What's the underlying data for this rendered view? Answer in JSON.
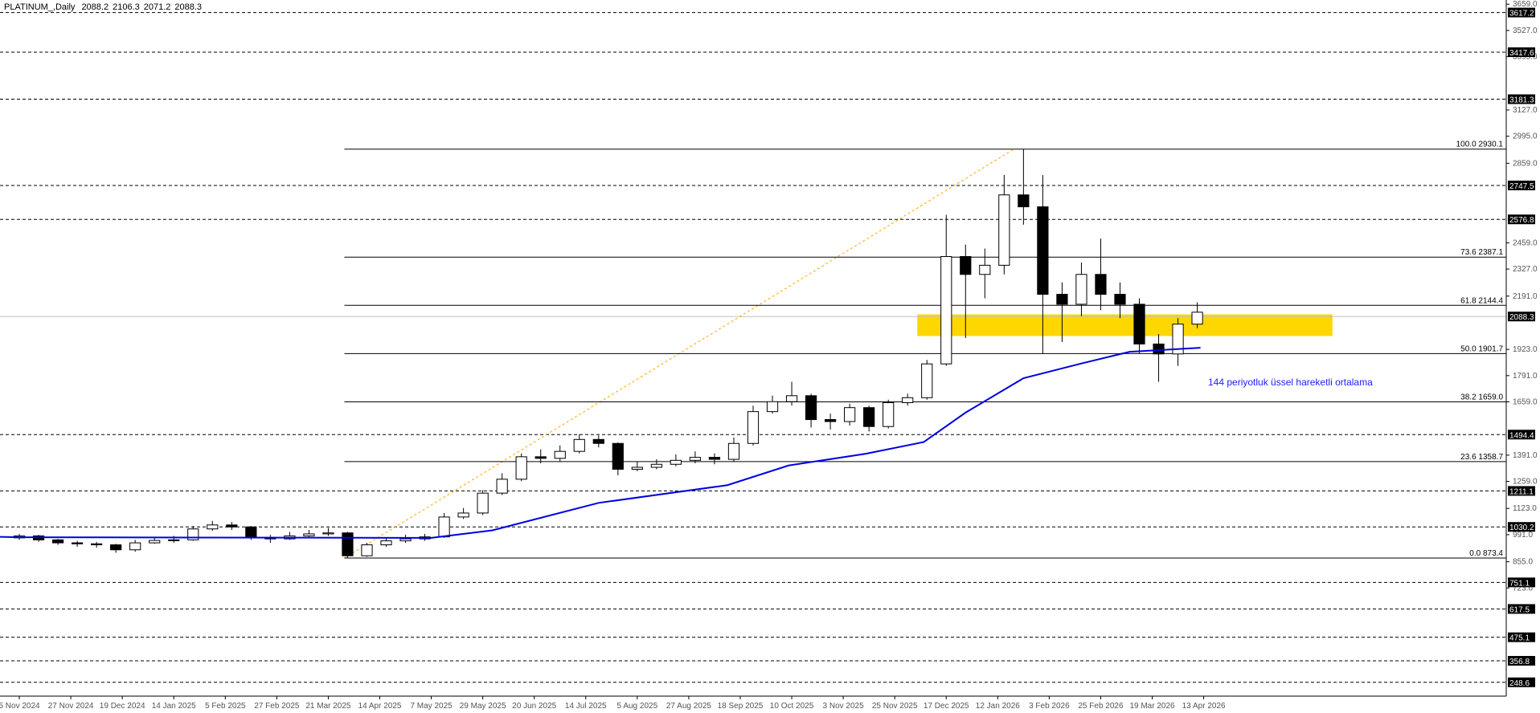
{
  "chart_data": {
    "type": "candlestick",
    "title": "PLATINUM_,Daily",
    "header_ohlc": [
      2088.2,
      2106.3,
      2071.2,
      2088.3
    ],
    "xlim": [
      -6,
      462
    ],
    "ylim": [
      179,
      3664
    ],
    "xticks": [
      {
        "value": 0,
        "label": "5 Nov 2024"
      },
      {
        "value": 16,
        "label": "27 Nov 2024"
      },
      {
        "value": 32,
        "label": "19 Dec 2024"
      },
      {
        "value": 48,
        "label": "14 Jan 2025"
      },
      {
        "value": 64,
        "label": "5 Feb 2025"
      },
      {
        "value": 80,
        "label": "27 Feb 2025"
      },
      {
        "value": 96,
        "label": "21 Mar 2025"
      },
      {
        "value": 112,
        "label": "14 Apr 2025"
      },
      {
        "value": 128,
        "label": "7 May 2025"
      },
      {
        "value": 144,
        "label": "29 May 2025"
      },
      {
        "value": 160,
        "label": "20 Jun 2025"
      },
      {
        "value": 176,
        "label": "14 Jul 2025"
      },
      {
        "value": 192,
        "label": "5 Aug 2025"
      },
      {
        "value": 208,
        "label": "27 Aug 2025"
      },
      {
        "value": 224,
        "label": "18 Sep 2025"
      },
      {
        "value": 240,
        "label": "10 Oct 2025"
      },
      {
        "value": 256,
        "label": "3 Nov 2025"
      },
      {
        "value": 272,
        "label": "25 Nov 2025"
      },
      {
        "value": 288,
        "label": "17 Dec 2025"
      },
      {
        "value": 304,
        "label": "12 Jan 2026"
      },
      {
        "value": 320,
        "label": "3 Feb 2026"
      },
      {
        "value": 336,
        "label": "25 Feb 2026"
      },
      {
        "value": 352,
        "label": "19 Mar 2026"
      },
      {
        "value": 368,
        "label": "13 Apr 2026"
      }
    ],
    "yticks": [
      {
        "value": 3659,
        "label": "3659.0"
      },
      {
        "value": 3527,
        "label": "3527.0"
      },
      {
        "value": 3395,
        "label": "3395.0"
      },
      {
        "value": 3127,
        "label": "3127.0"
      },
      {
        "value": 2995,
        "label": "2995.0"
      },
      {
        "value": 2859,
        "label": "2859.0"
      },
      {
        "value": 2459,
        "label": "2459.0"
      },
      {
        "value": 2327,
        "label": "2327.0"
      },
      {
        "value": 2191,
        "label": "2191.0"
      },
      {
        "value": 1923,
        "label": "1923.0"
      },
      {
        "value": 1791,
        "label": "1791.0"
      },
      {
        "value": 1659,
        "label": "1659.0"
      },
      {
        "value": 1391,
        "label": "1391.0"
      },
      {
        "value": 1259,
        "label": "1259.0"
      },
      {
        "value": 1123,
        "label": "1123.0"
      },
      {
        "value": 991,
        "label": "991.0"
      },
      {
        "value": 855,
        "label": "855.0"
      },
      {
        "value": 723,
        "label": "723.0"
      }
    ],
    "levels": [
      3617.2,
      3417.6,
      3181.3,
      2747.5,
      2576.8,
      1494.4,
      1211.1,
      1030.2,
      751.1,
      617.5,
      475.1,
      356.8,
      248.6
    ],
    "current_price": 2088.3,
    "fib": {
      "x": [
        101,
        309
      ],
      "color": "#ffa500",
      "levels": [
        {
          "value": 2930.1,
          "label": "100.0 2930.1"
        },
        {
          "value": 2387.1,
          "label": "73.6 2387.1"
        },
        {
          "value": 2144.4,
          "label": "61.8 2144.4"
        },
        {
          "value": 1901.7,
          "label": "50.0 1901.7"
        },
        {
          "value": 1659.0,
          "label": "38.2 1659.0"
        },
        {
          "value": 1358.7,
          "label": "23.6 1358.7"
        },
        {
          "value": 873.4,
          "label": "0.0 873.4"
        }
      ]
    },
    "zone": {
      "x": [
        279,
        408
      ],
      "y": [
        1990,
        2099
      ],
      "color": "#ffd700"
    },
    "annotation": "144 periyotluk üssel hareketli ortalama",
    "ema": {
      "color": "#0000e0",
      "x": [
        -6,
        0,
        128,
        147,
        180,
        220,
        239,
        263,
        281,
        294,
        312,
        330,
        345,
        367
      ],
      "values": [
        980,
        978,
        975,
        1013,
        1151,
        1240,
        1339,
        1398,
        1457,
        1605,
        1778,
        1852,
        1911,
        1931
      ]
    },
    "candles": {
      "x": [
        0,
        6,
        12,
        18,
        24,
        30,
        36,
        42,
        48,
        54,
        60,
        66,
        72,
        78,
        84,
        90,
        96,
        102,
        108,
        114,
        120,
        126,
        132,
        138,
        144,
        150,
        156,
        162,
        168,
        174,
        180,
        186,
        192,
        198,
        204,
        210,
        216,
        222,
        228,
        234,
        240,
        246,
        252,
        258,
        264,
        270,
        276,
        282,
        288,
        294,
        300,
        306,
        312,
        318,
        324,
        330,
        336,
        342,
        348,
        354,
        360,
        366
      ],
      "open": [
        975,
        985,
        965,
        950,
        945,
        940,
        915,
        950,
        962,
        965,
        1020,
        1040,
        1030,
        975,
        970,
        985,
        995,
        1000,
        885,
        940,
        960,
        970,
        980,
        1080,
        1100,
        1200,
        1270,
        1383,
        1375,
        1410,
        1470,
        1450,
        1320,
        1330,
        1345,
        1365,
        1380,
        1370,
        1450,
        1610,
        1660,
        1690,
        1570,
        1560,
        1630,
        1535,
        1655,
        1680,
        1850,
        2390,
        2300,
        2346,
        2700,
        2640,
        2200,
        2150,
        2300,
        2200,
        2150,
        1950,
        1900,
        2050
      ],
      "high": [
        995,
        990,
        970,
        960,
        955,
        945,
        965,
        975,
        985,
        1035,
        1060,
        1055,
        1035,
        990,
        1005,
        1015,
        1025,
        1005,
        950,
        975,
        990,
        995,
        1100,
        1125,
        1215,
        1300,
        1400,
        1420,
        1440,
        1495,
        1490,
        1455,
        1360,
        1370,
        1395,
        1410,
        1400,
        1480,
        1640,
        1690,
        1760,
        1700,
        1600,
        1650,
        1640,
        1670,
        1700,
        1870,
        2600,
        2450,
        2430,
        2800,
        2930,
        2800,
        2260,
        2360,
        2480,
        2260,
        2180,
        2000,
        2080,
        2160
      ],
      "low": [
        965,
        955,
        940,
        930,
        925,
        900,
        905,
        945,
        950,
        960,
        1010,
        1015,
        965,
        950,
        965,
        980,
        985,
        873,
        880,
        930,
        950,
        960,
        975,
        1070,
        1090,
        1190,
        1260,
        1350,
        1360,
        1400,
        1430,
        1290,
        1310,
        1320,
        1335,
        1350,
        1345,
        1360,
        1440,
        1600,
        1640,
        1530,
        1520,
        1540,
        1510,
        1525,
        1640,
        1670,
        1840,
        1980,
        2180,
        2300,
        2550,
        1900,
        1960,
        2090,
        2120,
        2080,
        1900,
        1760,
        1840,
        2030
      ],
      "close": [
        985,
        965,
        950,
        945,
        940,
        915,
        950,
        962,
        965,
        1020,
        1040,
        1030,
        975,
        970,
        985,
        995,
        1000,
        885,
        940,
        960,
        970,
        980,
        1080,
        1100,
        1200,
        1270,
        1383,
        1375,
        1410,
        1470,
        1450,
        1320,
        1330,
        1345,
        1365,
        1380,
        1370,
        1450,
        1610,
        1660,
        1690,
        1570,
        1560,
        1630,
        1535,
        1655,
        1680,
        1850,
        2390,
        2300,
        2346,
        2700,
        2640,
        2200,
        2150,
        2300,
        2200,
        2150,
        1950,
        1900,
        2050,
        2110
      ]
    }
  }
}
